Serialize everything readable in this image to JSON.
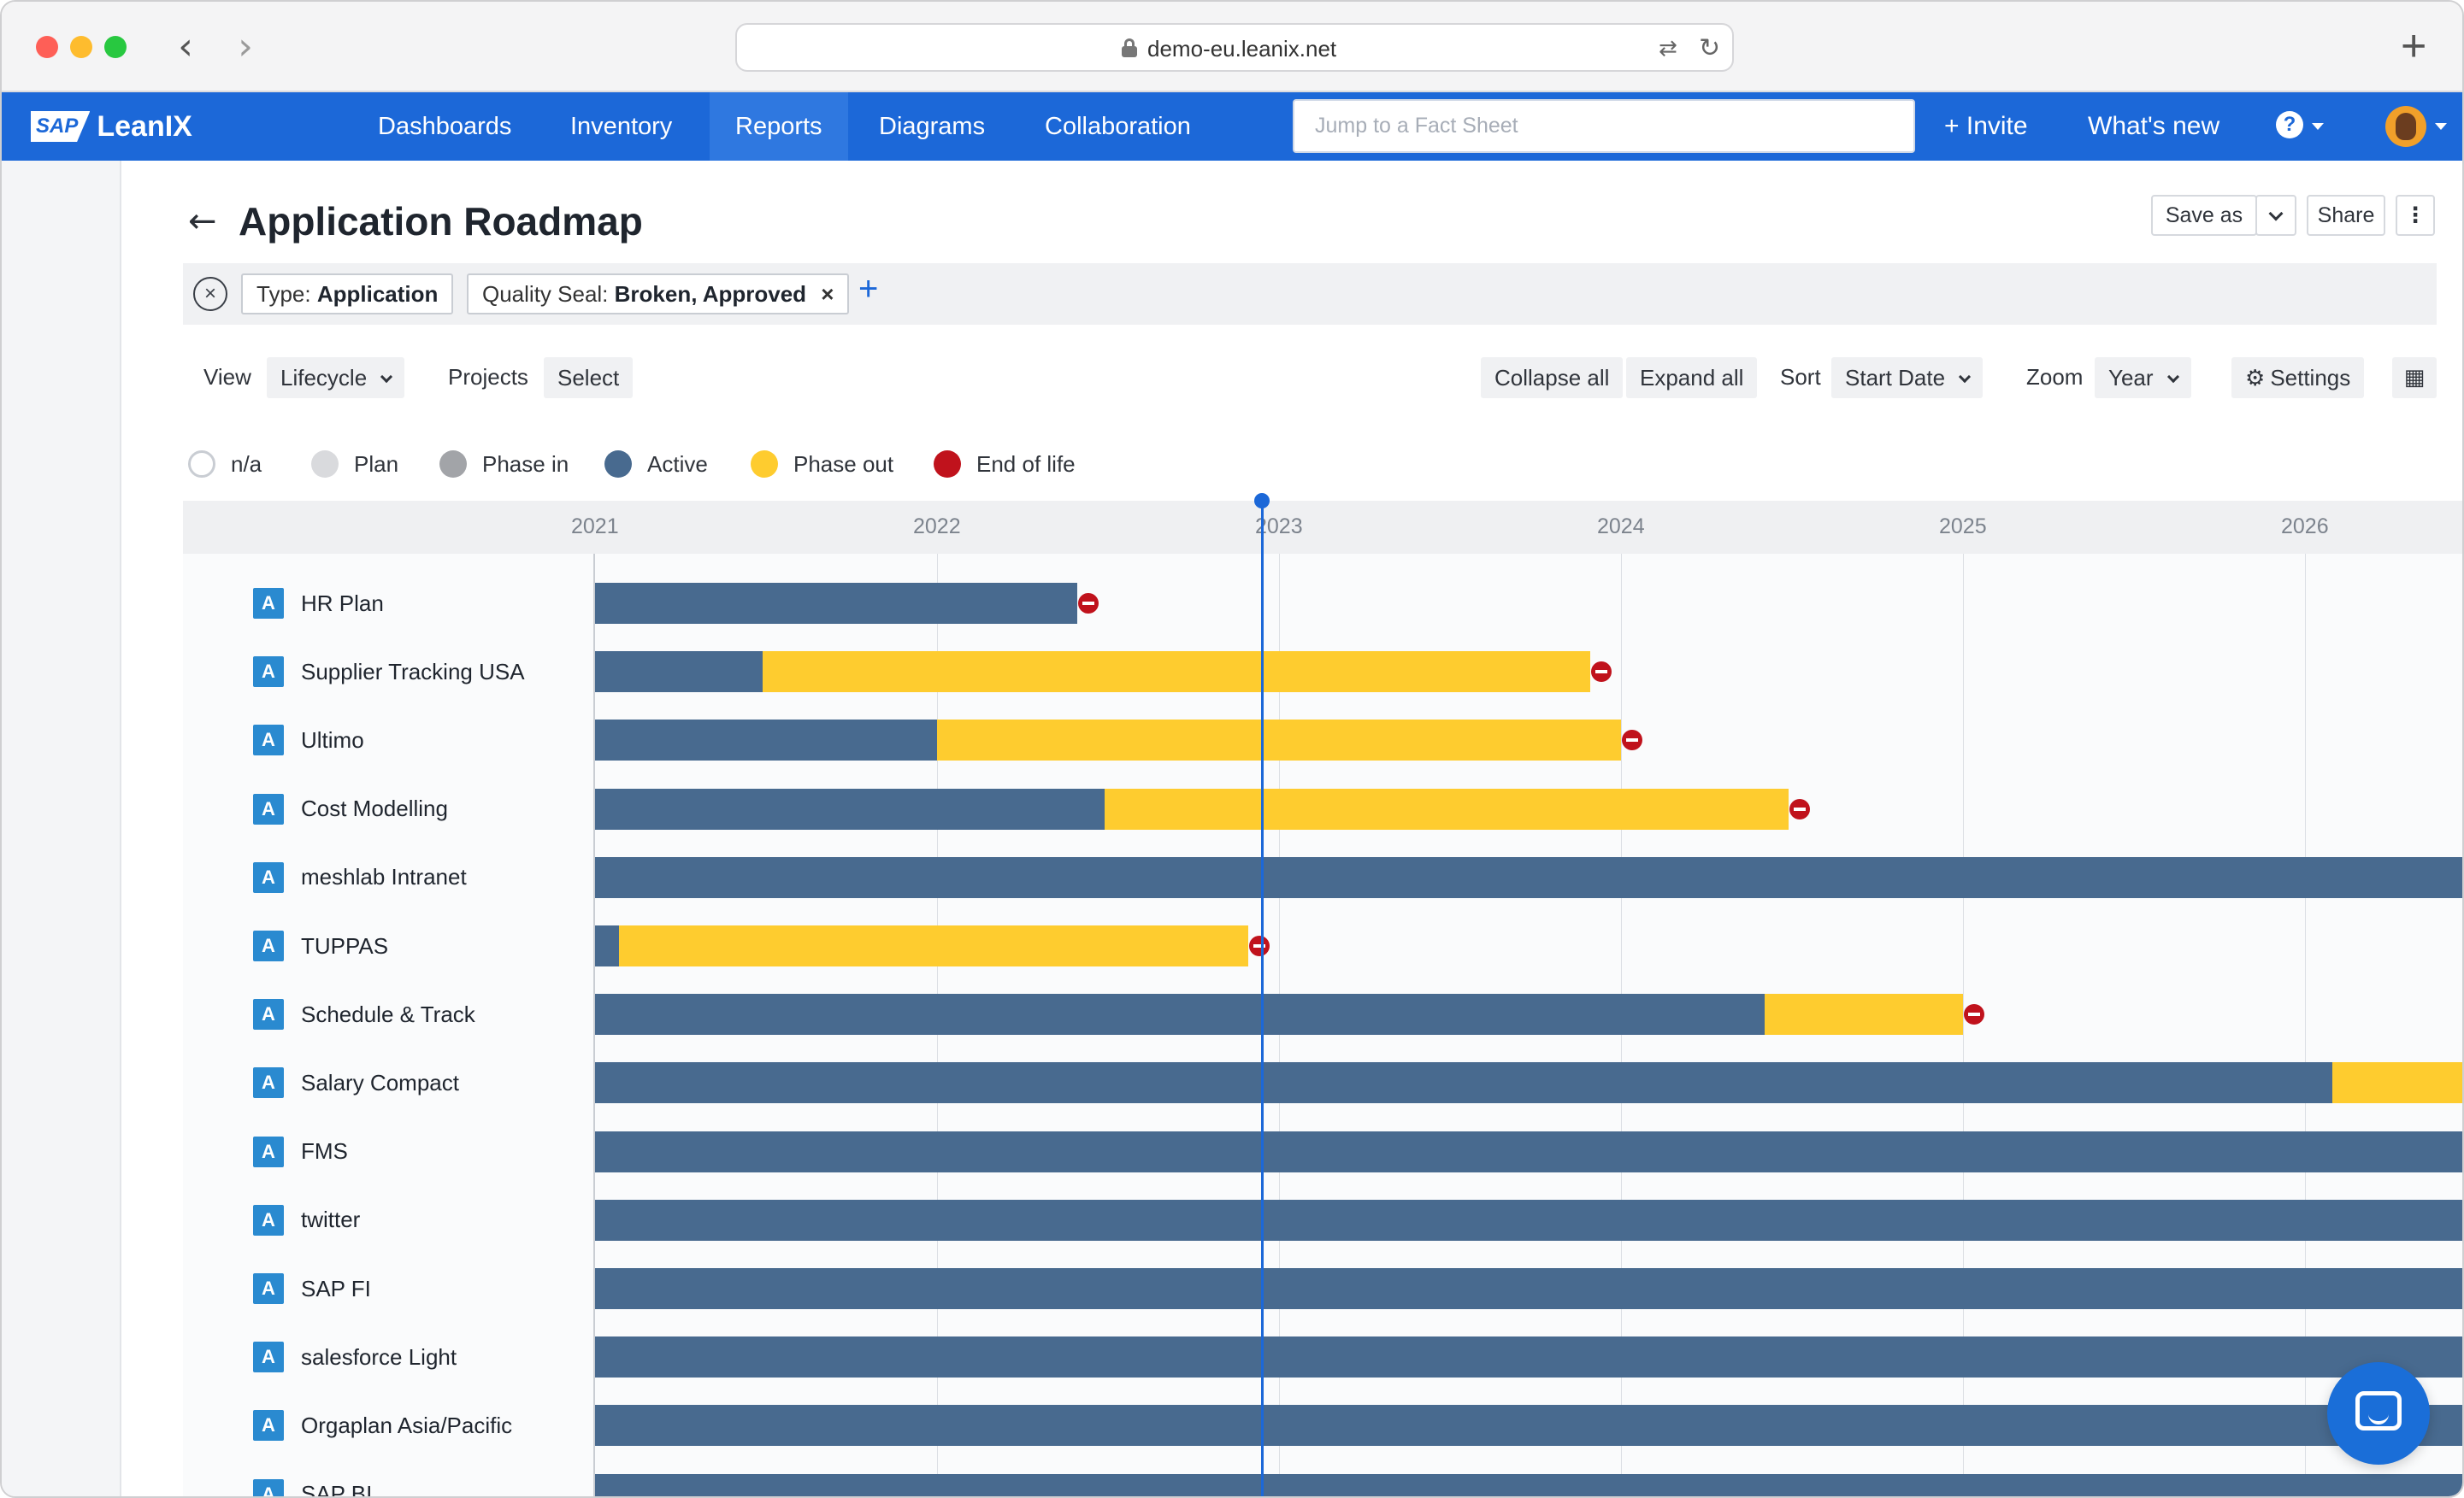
{
  "browser": {
    "url": "demo-eu.leanix.net",
    "back_icon": "chevron-left-icon",
    "forward_icon": "chevron-right-icon",
    "new_tab_label": "+"
  },
  "nav": {
    "logo_mark": "SAP",
    "logo_text": "LeanIX",
    "items": [
      "Dashboards",
      "Inventory",
      "Reports",
      "Diagrams",
      "Collaboration"
    ],
    "active": "Reports",
    "search_placeholder": "Jump to a Fact Sheet",
    "invite_label": "+ Invite",
    "whats_new_label": "What's new",
    "help_label": "?"
  },
  "header": {
    "title": "Application Roadmap",
    "save_as_label": "Save as",
    "share_label": "Share"
  },
  "filters": {
    "chips": [
      {
        "key": "Type:",
        "value": "Application",
        "removable": false
      },
      {
        "key": "Quality Seal:",
        "value": "Broken, Approved",
        "removable": true
      }
    ]
  },
  "toolbar": {
    "view_label": "View",
    "view_value": "Lifecycle",
    "projects_label": "Projects",
    "projects_value": "Select",
    "collapse_all_label": "Collapse all",
    "expand_all_label": "Expand all",
    "sort_label": "Sort",
    "sort_value": "Start Date",
    "zoom_label": "Zoom",
    "zoom_value": "Year",
    "settings_label": "Settings"
  },
  "legend": [
    {
      "label": "n/a",
      "color": "#ffffff"
    },
    {
      "label": "Plan",
      "color": "#d9dadd"
    },
    {
      "label": "Phase in",
      "color": "#a2a4a8"
    },
    {
      "label": "Active",
      "color": "#486a8f"
    },
    {
      "label": "Phase out",
      "color": "#fecc2f"
    },
    {
      "label": "End of life",
      "color": "#c0121c"
    }
  ],
  "colors": {
    "active": "#486a8f",
    "phase_out": "#fecc2f",
    "end_of_life": "#c0121c",
    "today": "#1c68d8"
  },
  "timeline": {
    "years": [
      "2021",
      "2022",
      "2023",
      "2024",
      "2025",
      "2026"
    ],
    "today": 2022.95
  },
  "chart_data": {
    "type": "table",
    "rows": [
      {
        "badge": "A",
        "name": "HR Plan",
        "active": [
          2021.0,
          2022.41
        ],
        "phase_out": null,
        "eol": 2022.41
      },
      {
        "badge": "A",
        "name": "Supplier Tracking USA",
        "active": [
          2021.0,
          2021.49
        ],
        "phase_out": [
          2021.49,
          2023.91
        ],
        "eol": 2023.91
      },
      {
        "badge": "A",
        "name": "Ultimo",
        "active": [
          2021.0,
          2022.0
        ],
        "phase_out": [
          2022.0,
          2024.0
        ],
        "eol": 2024.0
      },
      {
        "badge": "A",
        "name": "Cost Modelling",
        "active": [
          2021.0,
          2022.49
        ],
        "phase_out": [
          2022.49,
          2024.49
        ],
        "eol": 2024.49
      },
      {
        "badge": "A",
        "name": "meshlab Intranet",
        "active": [
          2021.0,
          2026.5
        ],
        "phase_out": null,
        "eol": null
      },
      {
        "badge": "A",
        "name": "TUPPAS",
        "active": [
          2021.0,
          2021.07
        ],
        "phase_out": [
          2021.07,
          2022.91
        ],
        "eol": 2022.91
      },
      {
        "badge": "A",
        "name": "Schedule & Track",
        "active": [
          2021.0,
          2024.42
        ],
        "phase_out": [
          2024.42,
          2025.0
        ],
        "eol": 2025.0
      },
      {
        "badge": "A",
        "name": "Salary Compact",
        "active": [
          2021.0,
          2026.08
        ],
        "phase_out": [
          2026.08,
          2026.5
        ],
        "eol": null
      },
      {
        "badge": "A",
        "name": "FMS",
        "active": [
          2021.0,
          2026.5
        ],
        "phase_out": null,
        "eol": null
      },
      {
        "badge": "A",
        "name": "twitter",
        "active": [
          2021.0,
          2026.5
        ],
        "phase_out": null,
        "eol": null
      },
      {
        "badge": "A",
        "name": "SAP FI",
        "active": [
          2021.0,
          2026.5
        ],
        "phase_out": null,
        "eol": null
      },
      {
        "badge": "A",
        "name": "salesforce Light",
        "active": [
          2021.0,
          2026.5
        ],
        "phase_out": null,
        "eol": null
      },
      {
        "badge": "A",
        "name": "Orgaplan Asia/Pacific",
        "active": [
          2021.0,
          2026.5
        ],
        "phase_out": null,
        "eol": null
      },
      {
        "badge": "A",
        "name": "SAP BI",
        "active": [
          2021.0,
          2026.5
        ],
        "phase_out": null,
        "eol": null
      }
    ]
  }
}
